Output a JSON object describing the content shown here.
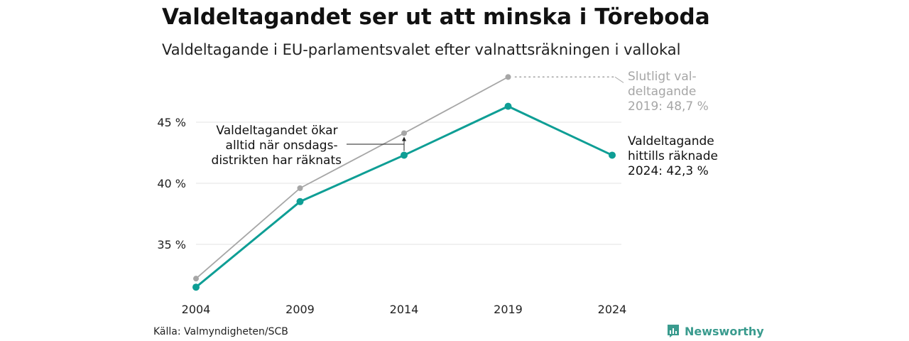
{
  "header": {
    "title": "Valdeltagandet ser ut att minska i Töreboda",
    "subtitle": "Valdeltagande i EU-parlamentsvalet efter valnattsräkningen i vallokal"
  },
  "footer": {
    "source": "Källa: Valmyndigheten/SCB",
    "brand": "Newsworthy"
  },
  "colors": {
    "primary": "#0e9e95",
    "secondary": "#a6a6a6",
    "grid": "#e3e3e3",
    "brand": "#3a9b8e"
  },
  "chart_data": {
    "type": "line",
    "title": "Valdeltagandet ser ut att minska i Töreboda",
    "subtitle": "Valdeltagande i EU-parlamentsvalet efter valnattsräkningen i vallokal",
    "x": [
      "2004",
      "2009",
      "2014",
      "2019",
      "2024"
    ],
    "y_ticks": [
      {
        "value": 35,
        "label": "35 %"
      },
      {
        "value": 40,
        "label": "40 %"
      },
      {
        "value": 45,
        "label": "45 %"
      }
    ],
    "ylim": [
      30,
      49
    ],
    "grid": true,
    "series": [
      {
        "key": "final",
        "values": [
          32.2,
          39.6,
          44.1,
          48.7,
          null
        ]
      },
      {
        "key": "counted",
        "values": [
          31.5,
          38.5,
          42.3,
          46.3,
          42.3
        ]
      }
    ],
    "annotations": {
      "final_2019": [
        "Slutligt val-",
        "deltagande",
        "2019: 48,7 %"
      ],
      "counted_2024": [
        "Valdeltagande",
        "hittills räknade",
        "2024: 42,3 %"
      ],
      "note": [
        "Valdeltagandet ökar",
        "alltid när onsdags-",
        "distrikten har räknats"
      ]
    }
  }
}
